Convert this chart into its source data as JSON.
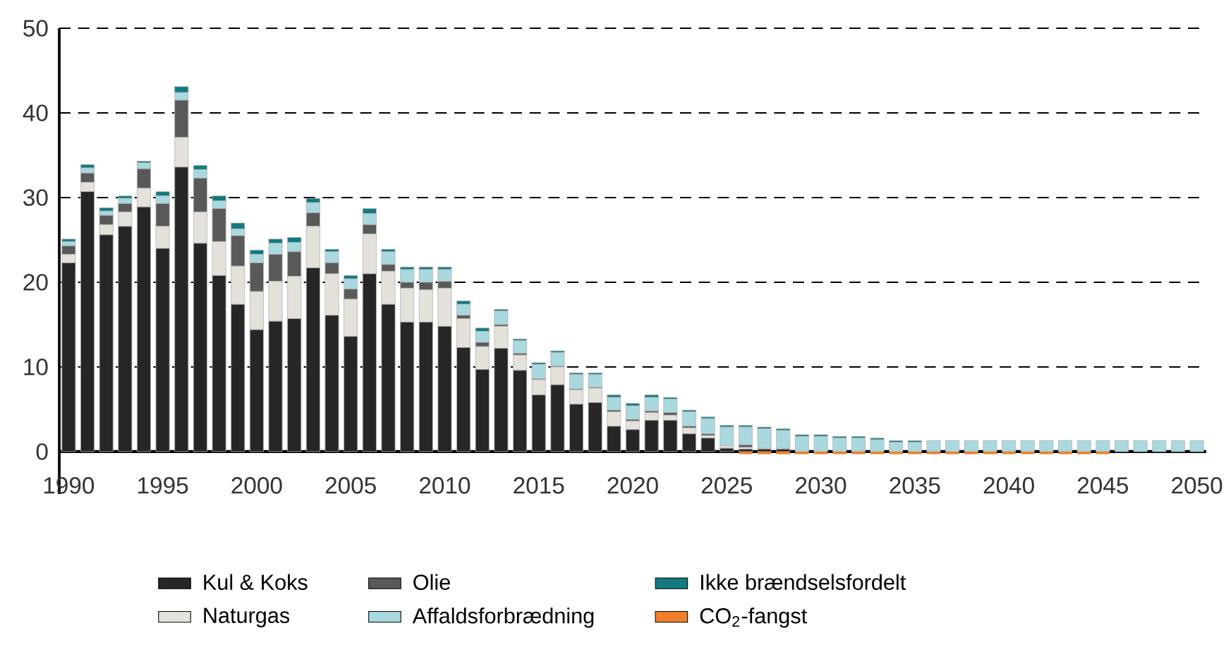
{
  "chart_data": {
    "type": "bar",
    "stacked": true,
    "x": [
      1990,
      1991,
      1992,
      1993,
      1994,
      1995,
      1996,
      1997,
      1998,
      1999,
      2000,
      2001,
      2002,
      2003,
      2004,
      2005,
      2006,
      2007,
      2008,
      2009,
      2010,
      2011,
      2012,
      2013,
      2014,
      2015,
      2016,
      2017,
      2018,
      2019,
      2020,
      2021,
      2022,
      2023,
      2024,
      2025,
      2026,
      2027,
      2028,
      2029,
      2030,
      2031,
      2032,
      2033,
      2034,
      2035,
      2036,
      2037,
      2038,
      2039,
      2040,
      2041,
      2042,
      2043,
      2044,
      2045,
      2046,
      2047,
      2048,
      2049,
      2050
    ],
    "series": [
      {
        "name": "Kul & Koks",
        "color": "#262626",
        "values": [
          22.3,
          30.7,
          25.6,
          26.6,
          28.9,
          24.0,
          33.6,
          24.6,
          20.8,
          17.4,
          14.4,
          15.4,
          15.7,
          21.7,
          16.1,
          13.6,
          21.0,
          17.4,
          15.3,
          15.3,
          14.8,
          12.3,
          9.7,
          12.2,
          9.6,
          6.7,
          7.9,
          5.6,
          5.8,
          3.0,
          2.6,
          3.7,
          3.7,
          2.1,
          1.6,
          0.4,
          0.3,
          0.3,
          0.3,
          0,
          0,
          0,
          0,
          0,
          0,
          0,
          0,
          0,
          0,
          0,
          0,
          0,
          0,
          0,
          0,
          0,
          0,
          0,
          0,
          0,
          0
        ]
      },
      {
        "name": "Naturgas",
        "color": "#e4e1db",
        "values": [
          1.0,
          1.1,
          1.2,
          1.7,
          2.2,
          2.6,
          3.5,
          3.7,
          4.0,
          4.5,
          4.5,
          4.7,
          5.0,
          4.9,
          4.9,
          4.4,
          4.7,
          3.9,
          4.0,
          3.8,
          4.5,
          3.4,
          2.7,
          2.6,
          1.8,
          1.8,
          2.1,
          1.7,
          1.7,
          1.7,
          1.0,
          0.9,
          0.6,
          0.7,
          0.3,
          0.3,
          0.2,
          0.1,
          0.1,
          0,
          0,
          0,
          0,
          0,
          0,
          0,
          0,
          0,
          0,
          0,
          0,
          0,
          0,
          0,
          0,
          0,
          0,
          0,
          0,
          0,
          0
        ]
      },
      {
        "name": "Olie",
        "color": "#595959",
        "values": [
          1.0,
          1.1,
          1.1,
          1.0,
          2.3,
          2.7,
          4.4,
          4.0,
          3.9,
          3.6,
          3.4,
          3.2,
          2.9,
          1.6,
          1.3,
          1.2,
          1.1,
          0.8,
          0.7,
          0.9,
          0.8,
          0.4,
          0.5,
          0.2,
          0.2,
          0.1,
          0.1,
          0.1,
          0.1,
          0.2,
          0.2,
          0.2,
          0.3,
          0.2,
          0.2,
          0,
          0.3,
          0,
          0,
          0,
          0,
          0,
          0,
          0,
          0,
          0,
          0,
          0,
          0,
          0,
          0,
          0,
          0,
          0,
          0,
          0,
          0,
          0,
          0,
          0,
          0
        ]
      },
      {
        "name": "Affaldsforbrædning",
        "color": "#a9d9de",
        "values": [
          0.5,
          0.6,
          0.5,
          0.6,
          0.7,
          0.9,
          0.9,
          1.0,
          0.9,
          0.8,
          1.0,
          1.3,
          1.1,
          1.2,
          1.3,
          1.2,
          1.3,
          1.5,
          1.5,
          1.5,
          1.4,
          1.3,
          1.3,
          1.6,
          1.5,
          1.7,
          1.6,
          1.7,
          1.5,
          1.5,
          1.6,
          1.6,
          1.6,
          1.7,
          1.8,
          2.2,
          2.1,
          2.3,
          2.1,
          1.8,
          1.8,
          1.6,
          1.6,
          1.4,
          1.1,
          1.1,
          1.3,
          1.3,
          1.3,
          1.3,
          1.3,
          1.3,
          1.3,
          1.3,
          1.3,
          1.3,
          1.3,
          1.3,
          1.3,
          1.3,
          1.3
        ]
      },
      {
        "name": "Ikke brændselsfordelt",
        "color": "#127a80",
        "values": [
          0.3,
          0.4,
          0.4,
          0.3,
          0.2,
          0.5,
          0.7,
          0.5,
          0.6,
          0.7,
          0.5,
          0.5,
          0.6,
          0.5,
          0.3,
          0.4,
          0.6,
          0.3,
          0.3,
          0.3,
          0.3,
          0.4,
          0.4,
          0.2,
          0.2,
          0.2,
          0.2,
          0.2,
          0.2,
          0.3,
          0.3,
          0.3,
          0.2,
          0.2,
          0.2,
          0.2,
          0.2,
          0.2,
          0.2,
          0.2,
          0.2,
          0.2,
          0.2,
          0.2,
          0.2,
          0.2,
          0,
          0,
          0,
          0,
          0,
          0,
          0,
          0,
          0,
          0,
          0,
          0,
          0,
          0,
          0
        ]
      },
      {
        "name": "CO$_{2}$-fangst",
        "color": "#f07f2a",
        "values": [
          null,
          null,
          null,
          null,
          null,
          null,
          null,
          null,
          null,
          null,
          null,
          null,
          null,
          null,
          null,
          null,
          null,
          null,
          null,
          null,
          null,
          null,
          null,
          null,
          null,
          null,
          null,
          null,
          null,
          null,
          null,
          null,
          null,
          null,
          null,
          null,
          -0.3,
          -0.3,
          -0.3,
          -0.3,
          -0.3,
          -0.3,
          -0.3,
          -0.3,
          -0.3,
          -0.3,
          -0.3,
          -0.3,
          -0.3,
          -0.3,
          -0.3,
          -0.3,
          -0.3,
          -0.3,
          -0.3,
          -0.3,
          null,
          null,
          null,
          null,
          null
        ]
      }
    ],
    "xlim": [
      1989.5,
      2050.5
    ],
    "xticks": [
      1990,
      1995,
      2000,
      2005,
      2010,
      2015,
      2020,
      2025,
      2030,
      2035,
      2040,
      2045,
      2050
    ],
    "ylim": [
      -5,
      50
    ],
    "yticks": [
      0,
      10,
      20,
      30,
      40,
      50
    ],
    "grid": "y",
    "legend": "bottom"
  }
}
